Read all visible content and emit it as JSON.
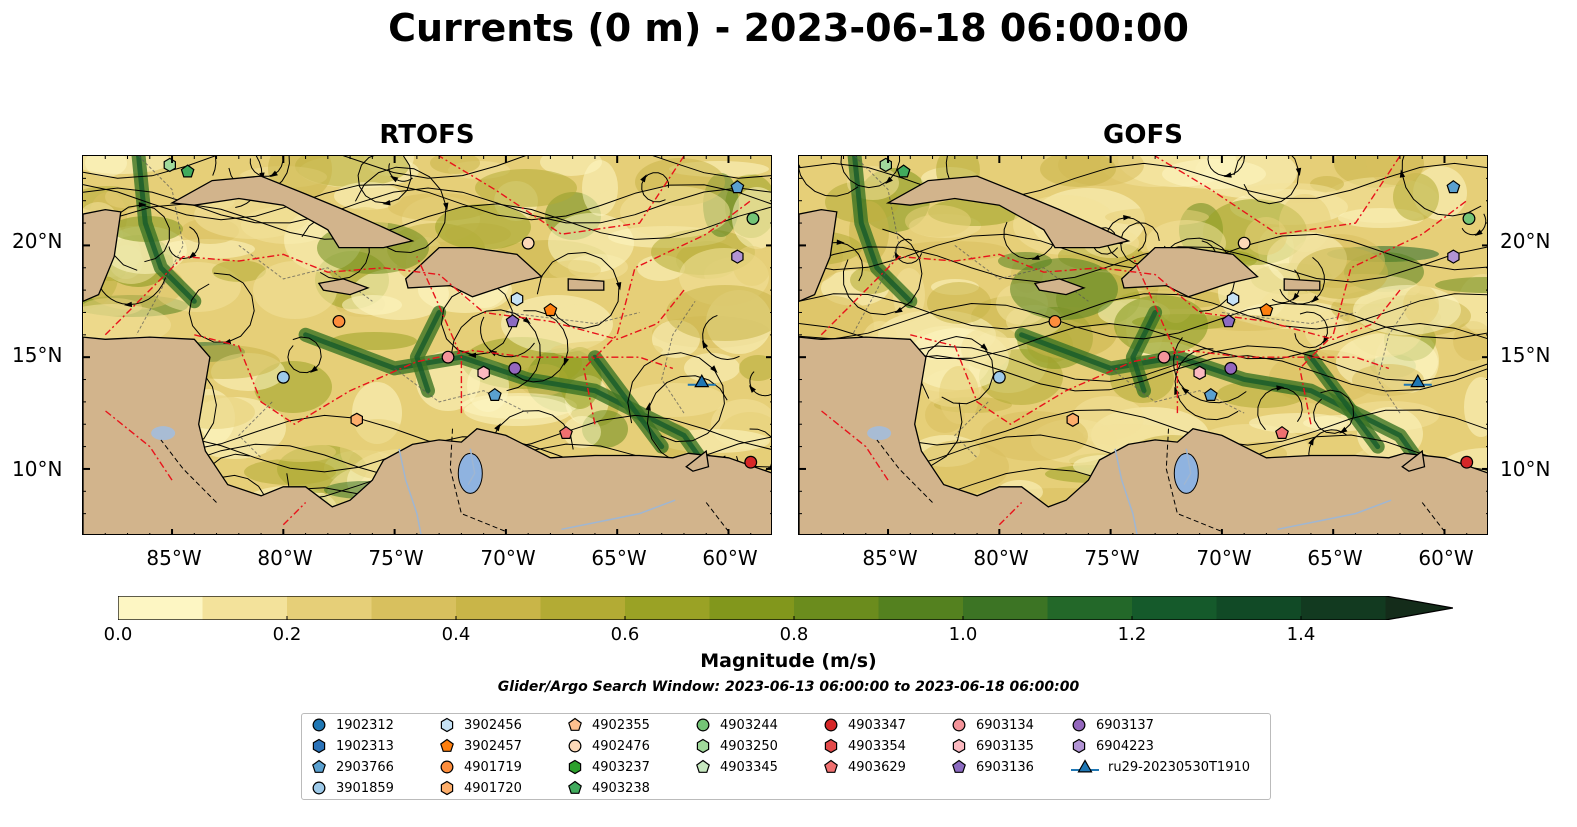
{
  "title": "Currents (0 m) - 2023-06-18 06:00:00",
  "panels": [
    {
      "title": "RTOFS"
    },
    {
      "title": "GOFS"
    }
  ],
  "axes": {
    "lat_ticks": [
      "20°N",
      "15°N",
      "10°N"
    ],
    "lon_ticks": [
      "85°W",
      "80°W",
      "75°W",
      "70°W",
      "65°W",
      "60°W"
    ],
    "lat_range": [
      7,
      24
    ],
    "lon_range": [
      -89,
      -58
    ]
  },
  "colorbar": {
    "label": "Magnitude (m/s)",
    "ticks": [
      "0.0",
      "0.2",
      "0.4",
      "0.6",
      "0.8",
      "1.0",
      "1.2",
      "1.4"
    ],
    "range": [
      0,
      1.5
    ],
    "colors": [
      "#fdf6c3",
      "#f3e29b",
      "#e6cf78",
      "#d8c05e",
      "#c9b548",
      "#b3ab34",
      "#9aa225",
      "#82971c",
      "#6b8c1d",
      "#54811f",
      "#3c7424",
      "#236829",
      "#155a2b",
      "#114a26",
      "#123a20",
      "#142c1a"
    ],
    "extend": "max"
  },
  "search_window": "Glider/Argo Search Window: 2023-06-13 06:00:00 to 2023-06-18 06:00:00",
  "legend": [
    {
      "id": "1902312",
      "marker": "circle",
      "color": "#1f77b4"
    },
    {
      "id": "1902313",
      "marker": "hexagon",
      "color": "#2a72b8"
    },
    {
      "id": "2903766",
      "marker": "pentagon",
      "color": "#5aa0d0"
    },
    {
      "id": "3901859",
      "marker": "circle",
      "color": "#9ecae9"
    },
    {
      "id": "3902456",
      "marker": "hexagon",
      "color": "#c6e2f5"
    },
    {
      "id": "3902457",
      "marker": "pentagon",
      "color": "#ff7f0e"
    },
    {
      "id": "4901719",
      "marker": "circle",
      "color": "#fd8d3c"
    },
    {
      "id": "4901720",
      "marker": "hexagon",
      "color": "#fdae6b"
    },
    {
      "id": "4902355",
      "marker": "pentagon",
      "color": "#fdc08f"
    },
    {
      "id": "4902476",
      "marker": "circle",
      "color": "#fdd9b8"
    },
    {
      "id": "4903237",
      "marker": "hexagon",
      "color": "#2ca02c"
    },
    {
      "id": "4903238",
      "marker": "pentagon",
      "color": "#41ab5d"
    },
    {
      "id": "4903244",
      "marker": "circle",
      "color": "#74c476"
    },
    {
      "id": "4903250",
      "marker": "hexagon",
      "color": "#a1d99b"
    },
    {
      "id": "4903345",
      "marker": "pentagon",
      "color": "#c7e9c0"
    },
    {
      "id": "4903347",
      "marker": "circle",
      "color": "#d62728"
    },
    {
      "id": "4903354",
      "marker": "hexagon",
      "color": "#e34a4a"
    },
    {
      "id": "4903629",
      "marker": "pentagon",
      "color": "#f07070"
    },
    {
      "id": "6903134",
      "marker": "circle",
      "color": "#f4949a"
    },
    {
      "id": "6903135",
      "marker": "hexagon",
      "color": "#fbb9c0"
    },
    {
      "id": "6903136",
      "marker": "pentagon",
      "color": "#8c6bc1"
    },
    {
      "id": "6903137",
      "marker": "circle",
      "color": "#9467bd"
    },
    {
      "id": "6904223",
      "marker": "hexagon",
      "color": "#b294d4"
    },
    {
      "id": "ru29-20230530T1910",
      "marker": "triangle-line",
      "color": "#1f77b4"
    }
  ],
  "floats": [
    {
      "id": "2903766",
      "lon": -59.6,
      "lat": 22.6
    },
    {
      "id": "4903244",
      "lon": -58.9,
      "lat": 21.2
    },
    {
      "id": "6904223",
      "lon": -59.6,
      "lat": 19.5
    },
    {
      "id": "4902476",
      "lon": -69.0,
      "lat": 20.1
    },
    {
      "id": "3902456",
      "lon": -69.5,
      "lat": 17.6
    },
    {
      "id": "3902457",
      "lon": -68.0,
      "lat": 17.1
    },
    {
      "id": "6903136",
      "lon": -69.7,
      "lat": 16.6
    },
    {
      "id": "4901719",
      "lon": -77.5,
      "lat": 16.6
    },
    {
      "id": "6903134",
      "lon": -72.6,
      "lat": 15.0
    },
    {
      "id": "6903135",
      "lon": -71.0,
      "lat": 14.3
    },
    {
      "id": "6903137",
      "lon": -69.6,
      "lat": 14.5
    },
    {
      "id": "2903766b",
      "lon": -70.5,
      "lat": 13.3
    },
    {
      "id": "3901859",
      "lon": -80.0,
      "lat": 14.1
    },
    {
      "id": "4901720",
      "lon": -76.7,
      "lat": 12.2
    },
    {
      "id": "4903629",
      "lon": -67.3,
      "lat": 11.6
    },
    {
      "id": "ru29-20230530T1910",
      "lon": -61.2,
      "lat": 13.9
    },
    {
      "id": "4903347",
      "lon": -59.0,
      "lat": 10.3
    },
    {
      "id": "4903250",
      "lon": -85.1,
      "lat": 23.6
    },
    {
      "id": "4903238",
      "lon": -84.3,
      "lat": 23.3
    }
  ]
}
